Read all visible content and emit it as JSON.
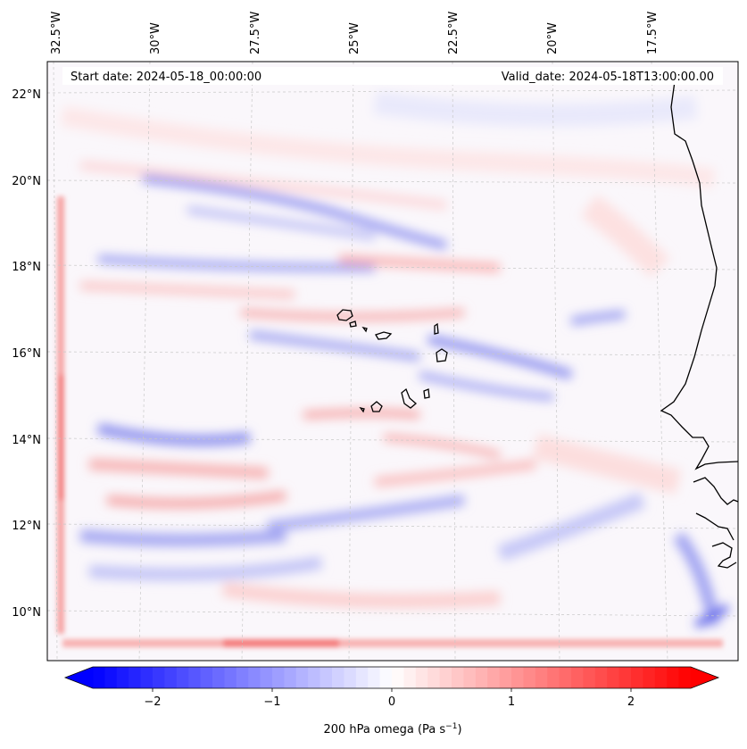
{
  "map": {
    "start_label": "Start date: 2024-05-18_00:00:00",
    "valid_label": "Valid_date: 2024-05-18T13:00:00.00",
    "lon_ticks": [
      {
        "label": "32.5°W",
        "lon": -32.5
      },
      {
        "label": "30°W",
        "lon": -30.0
      },
      {
        "label": "27.5°W",
        "lon": -27.5
      },
      {
        "label": "25°W",
        "lon": -25.0
      },
      {
        "label": "22.5°W",
        "lon": -22.5
      },
      {
        "label": "20°W",
        "lon": -20.0
      },
      {
        "label": "17.5°W",
        "lon": -17.5
      }
    ],
    "lat_ticks": [
      {
        "label": "22°N",
        "lat": 22
      },
      {
        "label": "20°N",
        "lat": 20
      },
      {
        "label": "18°N",
        "lat": 18
      },
      {
        "label": "16°N",
        "lat": 16
      },
      {
        "label": "14°N",
        "lat": 14
      },
      {
        "label": "12°N",
        "lat": 12
      },
      {
        "label": "10°N",
        "lat": 10
      }
    ]
  },
  "colorbar": {
    "ticks": [
      {
        "label": "−2",
        "value": -2
      },
      {
        "label": "−1",
        "value": -1
      },
      {
        "label": "0",
        "value": 0
      },
      {
        "label": "1",
        "value": 1
      },
      {
        "label": "2",
        "value": 2
      }
    ],
    "label_main": "200 hPa omega (Pa s",
    "label_sup": "−1",
    "label_end": ")",
    "vmin": -2.5,
    "vmax": 2.5,
    "low_color": "#0000ff",
    "mid_color": "#ffffff",
    "high_color": "#ff0000"
  }
}
